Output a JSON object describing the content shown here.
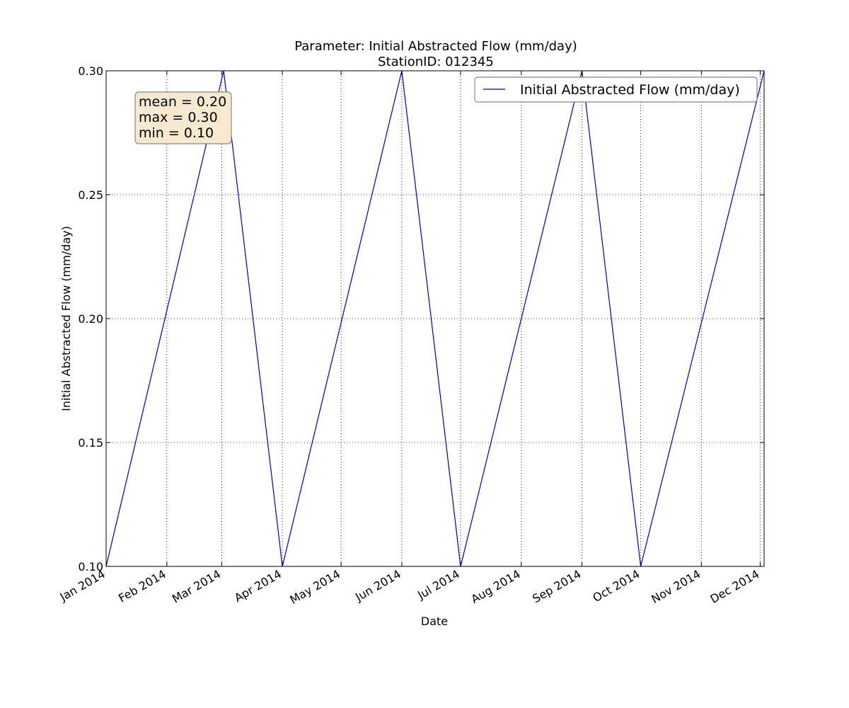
{
  "chart_data": {
    "type": "line",
    "title": "Parameter: Initial Abstracted Flow (mm/day)",
    "subtitle": "StationID: 012345",
    "xlabel": "Date",
    "ylabel": "Initial Abstracted Flow (mm/day)",
    "x_range": [
      "2014-01-01",
      "2014-12-03"
    ],
    "ylim": [
      0.1,
      0.3
    ],
    "grid": true,
    "grid_style": "dotted",
    "legend_position": "top-right",
    "x_ticks": [
      {
        "date": "2014-01-01",
        "label": "Jan 2014"
      },
      {
        "date": "2014-02-01",
        "label": "Feb 2014"
      },
      {
        "date": "2014-03-01",
        "label": "Mar 2014"
      },
      {
        "date": "2014-04-01",
        "label": "Apr 2014"
      },
      {
        "date": "2014-05-01",
        "label": "May 2014"
      },
      {
        "date": "2014-06-01",
        "label": "Jun 2014"
      },
      {
        "date": "2014-07-01",
        "label": "Jul 2014"
      },
      {
        "date": "2014-08-01",
        "label": "Aug 2014"
      },
      {
        "date": "2014-09-01",
        "label": "Sep 2014"
      },
      {
        "date": "2014-10-01",
        "label": "Oct 2014"
      },
      {
        "date": "2014-11-01",
        "label": "Nov 2014"
      },
      {
        "date": "2014-12-01",
        "label": "Dec 2014"
      }
    ],
    "y_ticks": [
      {
        "value": 0.1,
        "label": "0.10"
      },
      {
        "value": 0.15,
        "label": "0.15"
      },
      {
        "value": 0.2,
        "label": "0.20"
      },
      {
        "value": 0.25,
        "label": "0.25"
      },
      {
        "value": 0.3,
        "label": "0.30"
      }
    ],
    "series": [
      {
        "name": "Initial Abstracted Flow (mm/day)",
        "color": "#0000aa",
        "points": [
          {
            "x": "2014-01-01",
            "y": 0.1
          },
          {
            "x": "2014-03-02",
            "y": 0.3
          },
          {
            "x": "2014-04-01",
            "y": 0.1
          },
          {
            "x": "2014-06-01",
            "y": 0.3
          },
          {
            "x": "2014-07-01",
            "y": 0.1
          },
          {
            "x": "2014-09-01",
            "y": 0.3
          },
          {
            "x": "2014-10-01",
            "y": 0.1
          },
          {
            "x": "2014-12-03",
            "y": 0.3
          }
        ]
      }
    ],
    "stats_box": {
      "lines": [
        "mean = 0.20",
        "max = 0.30",
        "min = 0.10"
      ],
      "background": "#f7e8d0",
      "border": "#888888"
    }
  }
}
